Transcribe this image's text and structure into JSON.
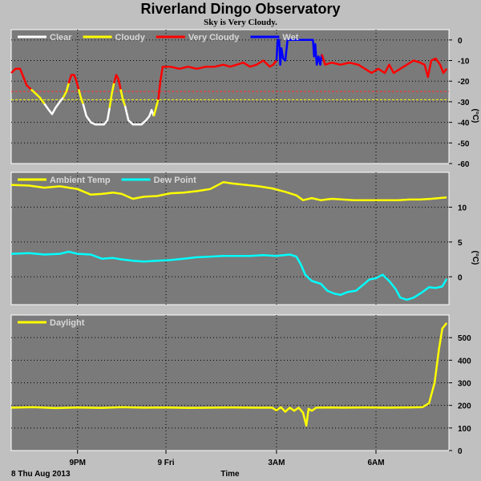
{
  "title": "Riverland Dingo Observatory",
  "subtitle": "Sky is Very Cloudy.",
  "chart_data": [
    {
      "type": "line",
      "name": "sky-temperature",
      "ylabel": "(°C)",
      "ylim": [
        -60,
        5
      ],
      "yticks": [
        0,
        -10,
        -20,
        -30,
        -40,
        -50,
        -60
      ],
      "thresholds": [
        {
          "value": -25,
          "color": "#ff3030"
        },
        {
          "value": -29,
          "color": "#ffff00"
        }
      ],
      "legend": [
        {
          "label": "Clear",
          "color": "#ffffff"
        },
        {
          "label": "Cloudy",
          "color": "#ffff00"
        },
        {
          "label": "Very Cloudy",
          "color": "#ff0000"
        },
        {
          "label": "Wet",
          "color": "#0000ff"
        }
      ],
      "segments": [
        {
          "color": "#ff0000",
          "points": [
            [
              0,
              -16
            ],
            [
              0.2,
              -14
            ],
            [
              0.4,
              -14
            ],
            [
              0.55,
              -18
            ],
            [
              0.7,
              -22
            ],
            [
              0.9,
              -24
            ]
          ]
        },
        {
          "color": "#ffff00",
          "points": [
            [
              0.9,
              -24
            ],
            [
              1.1,
              -26
            ],
            [
              1.3,
              -28
            ],
            [
              1.5,
              -31
            ]
          ]
        },
        {
          "color": "#ffffff",
          "points": [
            [
              1.5,
              -31
            ],
            [
              1.7,
              -34
            ],
            [
              1.85,
              -36
            ],
            [
              2.0,
              -33
            ],
            [
              2.2,
              -30
            ],
            [
              2.35,
              -28
            ]
          ]
        },
        {
          "color": "#ffff00",
          "points": [
            [
              2.35,
              -28
            ],
            [
              2.5,
              -25
            ],
            [
              2.6,
              -21
            ]
          ]
        },
        {
          "color": "#ff0000",
          "points": [
            [
              2.6,
              -21
            ],
            [
              2.72,
              -17
            ],
            [
              2.85,
              -17
            ],
            [
              2.95,
              -20
            ],
            [
              3.05,
              -24
            ]
          ]
        },
        {
          "color": "#ffff00",
          "points": [
            [
              3.05,
              -24
            ],
            [
              3.15,
              -28
            ],
            [
              3.25,
              -31
            ]
          ]
        },
        {
          "color": "#ffffff",
          "points": [
            [
              3.25,
              -31
            ],
            [
              3.4,
              -37
            ],
            [
              3.6,
              -40
            ],
            [
              3.8,
              -41
            ],
            [
              4.0,
              -41
            ],
            [
              4.2,
              -41
            ],
            [
              4.35,
              -39
            ],
            [
              4.45,
              -33
            ]
          ]
        },
        {
          "color": "#ffff00",
          "points": [
            [
              4.45,
              -33
            ],
            [
              4.55,
              -26
            ],
            [
              4.65,
              -21
            ]
          ]
        },
        {
          "color": "#ff0000",
          "points": [
            [
              4.65,
              -21
            ],
            [
              4.75,
              -17
            ],
            [
              4.85,
              -19
            ],
            [
              4.95,
              -24
            ]
          ]
        },
        {
          "color": "#ffff00",
          "points": [
            [
              4.95,
              -24
            ],
            [
              5.05,
              -29
            ],
            [
              5.15,
              -32
            ]
          ]
        },
        {
          "color": "#ffffff",
          "points": [
            [
              5.15,
              -32
            ],
            [
              5.3,
              -39
            ],
            [
              5.5,
              -41
            ],
            [
              5.7,
              -41
            ],
            [
              5.9,
              -41
            ],
            [
              6.1,
              -39
            ],
            [
              6.25,
              -37
            ],
            [
              6.35,
              -34
            ],
            [
              6.45,
              -37
            ]
          ]
        },
        {
          "color": "#ffff00",
          "points": [
            [
              6.45,
              -37
            ],
            [
              6.55,
              -33
            ],
            [
              6.65,
              -29
            ]
          ]
        },
        {
          "color": "#ff0000",
          "points": [
            [
              6.65,
              -29
            ],
            [
              6.75,
              -20
            ],
            [
              6.85,
              -13
            ],
            [
              7.2,
              -13
            ],
            [
              7.6,
              -14
            ],
            [
              8.0,
              -13
            ],
            [
              8.4,
              -14
            ],
            [
              8.8,
              -13
            ],
            [
              9.2,
              -13
            ],
            [
              9.6,
              -12
            ],
            [
              9.9,
              -13
            ],
            [
              10.2,
              -12
            ],
            [
              10.5,
              -11
            ],
            [
              10.8,
              -13
            ],
            [
              11.1,
              -12
            ],
            [
              11.4,
              -10
            ],
            [
              11.7,
              -13
            ],
            [
              11.85,
              -12
            ],
            [
              12.0,
              -10
            ]
          ]
        },
        {
          "color": "#0000ff",
          "points": [
            [
              12.0,
              -10
            ],
            [
              12.05,
              0
            ],
            [
              12.12,
              0
            ],
            [
              12.17,
              -12
            ],
            [
              12.22,
              -4
            ],
            [
              12.3,
              -9
            ],
            [
              12.4,
              -10
            ],
            [
              12.5,
              0
            ],
            [
              13.0,
              0
            ],
            [
              13.5,
              0
            ],
            [
              13.65,
              0
            ],
            [
              13.7,
              -8
            ],
            [
              13.75,
              -2
            ],
            [
              13.82,
              -12
            ],
            [
              13.9,
              -8
            ],
            [
              13.98,
              -12
            ],
            [
              14.05,
              -7
            ]
          ]
        },
        {
          "color": "#ff0000",
          "points": [
            [
              14.05,
              -7
            ],
            [
              14.2,
              -12
            ],
            [
              14.5,
              -11
            ],
            [
              14.9,
              -12
            ],
            [
              15.3,
              -11
            ],
            [
              15.7,
              -12
            ],
            [
              16.0,
              -14
            ],
            [
              16.3,
              -16
            ],
            [
              16.6,
              -14
            ],
            [
              16.9,
              -16
            ],
            [
              17.1,
              -12
            ],
            [
              17.3,
              -16
            ],
            [
              17.6,
              -14
            ],
            [
              17.9,
              -12
            ],
            [
              18.2,
              -10
            ],
            [
              18.5,
              -11
            ],
            [
              18.7,
              -12
            ],
            [
              18.85,
              -18
            ],
            [
              19.0,
              -10
            ],
            [
              19.2,
              -9
            ],
            [
              19.4,
              -12
            ],
            [
              19.55,
              -16
            ],
            [
              19.7,
              -14
            ]
          ]
        }
      ]
    },
    {
      "type": "line",
      "name": "temperature",
      "ylabel": "(°C)",
      "ylim": [
        -4,
        15
      ],
      "yticks": [
        10,
        5,
        0
      ],
      "legend": [
        {
          "label": "Ambient Temp",
          "color": "#ffff00"
        },
        {
          "label": "Dew Point",
          "color": "#00ffff"
        }
      ],
      "series": [
        {
          "color": "#ffff00",
          "points": [
            [
              0,
              13.2
            ],
            [
              0.8,
              13.1
            ],
            [
              1.5,
              12.8
            ],
            [
              2.2,
              13.0
            ],
            [
              3.0,
              12.6
            ],
            [
              3.6,
              11.8
            ],
            [
              4.1,
              11.9
            ],
            [
              4.6,
              12.1
            ],
            [
              5.0,
              11.9
            ],
            [
              5.5,
              11.2
            ],
            [
              6.0,
              11.5
            ],
            [
              6.6,
              11.6
            ],
            [
              7.2,
              12.0
            ],
            [
              7.8,
              12.1
            ],
            [
              8.4,
              12.3
            ],
            [
              9.0,
              12.6
            ],
            [
              9.6,
              13.6
            ],
            [
              10.0,
              13.4
            ],
            [
              10.6,
              13.2
            ],
            [
              11.2,
              13.0
            ],
            [
              11.8,
              12.7
            ],
            [
              12.4,
              12.2
            ],
            [
              12.9,
              11.7
            ],
            [
              13.2,
              11.0
            ],
            [
              13.6,
              11.3
            ],
            [
              14.0,
              11.0
            ],
            [
              14.5,
              11.2
            ],
            [
              15.0,
              11.1
            ],
            [
              15.5,
              11.0
            ],
            [
              16.0,
              11.0
            ],
            [
              16.5,
              11.0
            ],
            [
              17.0,
              11.0
            ],
            [
              17.5,
              11.0
            ],
            [
              18.0,
              11.1
            ],
            [
              18.5,
              11.1
            ],
            [
              19.0,
              11.2
            ],
            [
              19.7,
              11.4
            ]
          ]
        },
        {
          "color": "#00ffff",
          "points": [
            [
              0,
              3.3
            ],
            [
              0.8,
              3.4
            ],
            [
              1.5,
              3.2
            ],
            [
              2.2,
              3.3
            ],
            [
              2.6,
              3.6
            ],
            [
              3.0,
              3.3
            ],
            [
              3.6,
              3.2
            ],
            [
              4.1,
              2.6
            ],
            [
              4.6,
              2.7
            ],
            [
              5.0,
              2.5
            ],
            [
              5.5,
              2.3
            ],
            [
              6.0,
              2.2
            ],
            [
              6.6,
              2.3
            ],
            [
              7.2,
              2.4
            ],
            [
              7.8,
              2.6
            ],
            [
              8.4,
              2.8
            ],
            [
              9.0,
              2.9
            ],
            [
              9.6,
              3.0
            ],
            [
              10.2,
              3.0
            ],
            [
              10.8,
              3.0
            ],
            [
              11.4,
              3.1
            ],
            [
              12.0,
              3.0
            ],
            [
              12.6,
              3.2
            ],
            [
              12.9,
              2.9
            ],
            [
              13.1,
              1.8
            ],
            [
              13.3,
              0.3
            ],
            [
              13.6,
              -0.6
            ],
            [
              14.0,
              -1.0
            ],
            [
              14.3,
              -2.0
            ],
            [
              14.6,
              -2.4
            ],
            [
              14.9,
              -2.6
            ],
            [
              15.2,
              -2.2
            ],
            [
              15.6,
              -2.0
            ],
            [
              15.9,
              -1.2
            ],
            [
              16.2,
              -0.4
            ],
            [
              16.5,
              -0.2
            ],
            [
              16.8,
              0.3
            ],
            [
              17.1,
              -0.6
            ],
            [
              17.4,
              -1.8
            ],
            [
              17.6,
              -3.0
            ],
            [
              17.9,
              -3.3
            ],
            [
              18.2,
              -3.0
            ],
            [
              18.6,
              -2.2
            ],
            [
              18.9,
              -1.5
            ],
            [
              19.2,
              -1.6
            ],
            [
              19.5,
              -1.4
            ],
            [
              19.7,
              -0.3
            ]
          ]
        }
      ]
    },
    {
      "type": "line",
      "name": "daylight",
      "ylim": [
        0,
        600
      ],
      "yticks": [
        500,
        400,
        300,
        200,
        100,
        0
      ],
      "legend": [
        {
          "label": "Daylight",
          "color": "#ffff00"
        }
      ],
      "series": [
        {
          "color": "#ffff00",
          "points": [
            [
              0,
              190
            ],
            [
              1,
              192
            ],
            [
              2,
              188
            ],
            [
              3,
              191
            ],
            [
              4,
              189
            ],
            [
              5,
              192
            ],
            [
              6,
              190
            ],
            [
              7,
              191
            ],
            [
              8,
              189
            ],
            [
              9,
              190
            ],
            [
              10,
              191
            ],
            [
              11,
              190
            ],
            [
              11.8,
              190
            ],
            [
              12,
              178
            ],
            [
              12.2,
              192
            ],
            [
              12.4,
              172
            ],
            [
              12.6,
              190
            ],
            [
              12.8,
              176
            ],
            [
              13.0,
              190
            ],
            [
              13.2,
              168
            ],
            [
              13.35,
              110
            ],
            [
              13.45,
              185
            ],
            [
              13.6,
              176
            ],
            [
              13.8,
              190
            ],
            [
              14.5,
              191
            ],
            [
              15,
              190
            ],
            [
              16,
              191
            ],
            [
              17,
              190
            ],
            [
              18,
              191
            ],
            [
              18.6,
              192
            ],
            [
              18.9,
              210
            ],
            [
              19.15,
              300
            ],
            [
              19.35,
              450
            ],
            [
              19.5,
              540
            ],
            [
              19.7,
              565
            ]
          ]
        }
      ]
    }
  ],
  "x_axis": {
    "range": [
      0,
      19.8
    ],
    "label": "Time",
    "date_label": "8 Thu Aug 2013",
    "ticks": [
      {
        "x": 3,
        "label": "9PM"
      },
      {
        "x": 7,
        "label": "9 Fri"
      },
      {
        "x": 12,
        "label": "3AM"
      },
      {
        "x": 16.5,
        "label": "6AM"
      }
    ]
  }
}
